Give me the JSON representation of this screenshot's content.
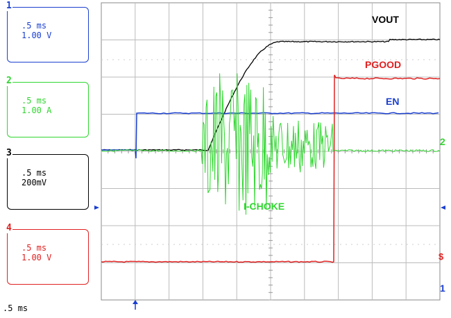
{
  "channels": [
    {
      "num": "1",
      "timebase": ".5 ms",
      "scale": "1.00 V",
      "color": "#1a3fd0"
    },
    {
      "num": "2",
      "timebase": ".5 ms",
      "scale": "1.00 A",
      "color": "#2fd62f"
    },
    {
      "num": "3",
      "timebase": ".5 ms",
      "scale": "200mV",
      "color": "#000000"
    },
    {
      "num": "4",
      "timebase": ".5 ms",
      "scale": "1.00 V",
      "color": "#e02020"
    }
  ],
  "traces": {
    "vout": {
      "label": "VOUT",
      "color": "#000000"
    },
    "pgood": {
      "label": "PGOOD",
      "color": "#e02020"
    },
    "en": {
      "label": "EN",
      "color": "#1a3fd0"
    },
    "ichoke": {
      "label": "I-CHOKE",
      "color": "#2fd62f"
    }
  },
  "markers": {
    "right_2": "2",
    "right_1": "1"
  },
  "timebase_label": ".5 ms"
}
